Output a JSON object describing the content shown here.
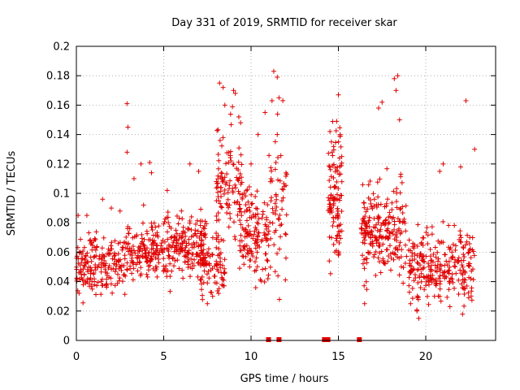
{
  "chart_data": {
    "type": "scatter",
    "title": "Day 331 of 2019, SRMTID for receiver skar",
    "xlabel": "GPS time / hours",
    "ylabel": "SRMTID / TECUs",
    "xlim": [
      0,
      24
    ],
    "ylim": [
      0,
      0.2
    ],
    "grid": true,
    "marker": "+",
    "color": "#e00000",
    "xticks": [
      0,
      5,
      10,
      15,
      20
    ],
    "xtick_labels": [
      "0",
      "5",
      "10",
      "15",
      "20"
    ],
    "yticks": [
      0,
      0.02,
      0.04,
      0.06,
      0.08,
      0.1,
      0.12,
      0.14,
      0.16,
      0.18,
      0.2
    ],
    "ytick_labels": [
      "0",
      "0.02",
      "0.04",
      "0.06",
      "0.08",
      "0.1",
      "0.12",
      "0.14",
      "0.16",
      "0.18",
      "0.2"
    ],
    "gap_markers_x": [
      11.0,
      11.6,
      14.2,
      14.4,
      16.2
    ],
    "clusters": [
      {
        "x": [
          0.0,
          2.8
        ],
        "mean": 0.052,
        "spread": 0.014,
        "count": 190,
        "outliers": [
          [
            0.1,
            0.085
          ],
          [
            0.6,
            0.085
          ],
          [
            1.5,
            0.096
          ],
          [
            2.0,
            0.09
          ],
          [
            2.5,
            0.088
          ]
        ]
      },
      {
        "x": [
          2.8,
          5.0
        ],
        "mean": 0.062,
        "spread": 0.014,
        "count": 160,
        "outliers": [
          [
            2.9,
            0.161
          ],
          [
            2.95,
            0.145
          ],
          [
            2.9,
            0.128
          ],
          [
            3.7,
            0.12
          ],
          [
            4.2,
            0.121
          ],
          [
            3.3,
            0.11
          ],
          [
            4.3,
            0.114
          ]
        ]
      },
      {
        "x": [
          5.0,
          7.5
        ],
        "mean": 0.063,
        "spread": 0.015,
        "count": 190,
        "outliers": [
          [
            6.5,
            0.12
          ],
          [
            7.0,
            0.115
          ],
          [
            5.2,
            0.102
          ]
        ]
      },
      {
        "x": [
          7.0,
          8.5
        ],
        "mean": 0.05,
        "spread": 0.017,
        "count": 90,
        "outliers": [
          [
            7.5,
            0.025
          ],
          [
            7.8,
            0.03
          ]
        ]
      },
      {
        "x": [
          8.0,
          9.5
        ],
        "mean": 0.105,
        "spread": 0.03,
        "count": 110,
        "outliers": [
          [
            8.2,
            0.175
          ],
          [
            8.4,
            0.172
          ],
          [
            9.0,
            0.17
          ],
          [
            9.1,
            0.168
          ],
          [
            8.5,
            0.16
          ],
          [
            9.3,
            0.152
          ],
          [
            9.4,
            0.148
          ]
        ]
      },
      {
        "x": [
          9.3,
          11.0
        ],
        "mean": 0.07,
        "spread": 0.022,
        "count": 130,
        "outliers": [
          [
            10.8,
            0.155
          ],
          [
            11.2,
            0.163
          ],
          [
            10.4,
            0.14
          ],
          [
            10.0,
            0.12
          ]
        ]
      },
      {
        "x": [
          11.0,
          12.1
        ],
        "mean": 0.095,
        "spread": 0.035,
        "count": 60,
        "outliers": [
          [
            11.3,
            0.183
          ],
          [
            11.5,
            0.179
          ],
          [
            11.6,
            0.165
          ],
          [
            11.5,
            0.14
          ],
          [
            12.0,
            0.072
          ],
          [
            12.0,
            0.056
          ]
        ]
      },
      {
        "x": [
          14.4,
          15.2
        ],
        "mean": 0.095,
        "spread": 0.032,
        "count": 110,
        "outliers": [
          [
            15.0,
            0.167
          ],
          [
            14.9,
            0.149
          ],
          [
            15.1,
            0.14
          ],
          [
            14.6,
            0.135
          ]
        ]
      },
      {
        "x": [
          16.3,
          18.9
        ],
        "mean": 0.075,
        "spread": 0.022,
        "count": 230,
        "outliers": [
          [
            17.5,
            0.162
          ],
          [
            17.3,
            0.158
          ],
          [
            18.2,
            0.178
          ],
          [
            18.4,
            0.18
          ],
          [
            18.3,
            0.17
          ],
          [
            18.5,
            0.15
          ],
          [
            16.5,
            0.025
          ]
        ]
      },
      {
        "x": [
          19.0,
          22.8
        ],
        "mean": 0.05,
        "spread": 0.017,
        "count": 260,
        "outliers": [
          [
            21.0,
            0.12
          ],
          [
            22.0,
            0.118
          ],
          [
            22.3,
            0.163
          ],
          [
            22.8,
            0.13
          ],
          [
            20.8,
            0.115
          ],
          [
            19.5,
            0.02
          ],
          [
            19.6,
            0.015
          ],
          [
            20.5,
            0.03
          ]
        ]
      }
    ]
  }
}
